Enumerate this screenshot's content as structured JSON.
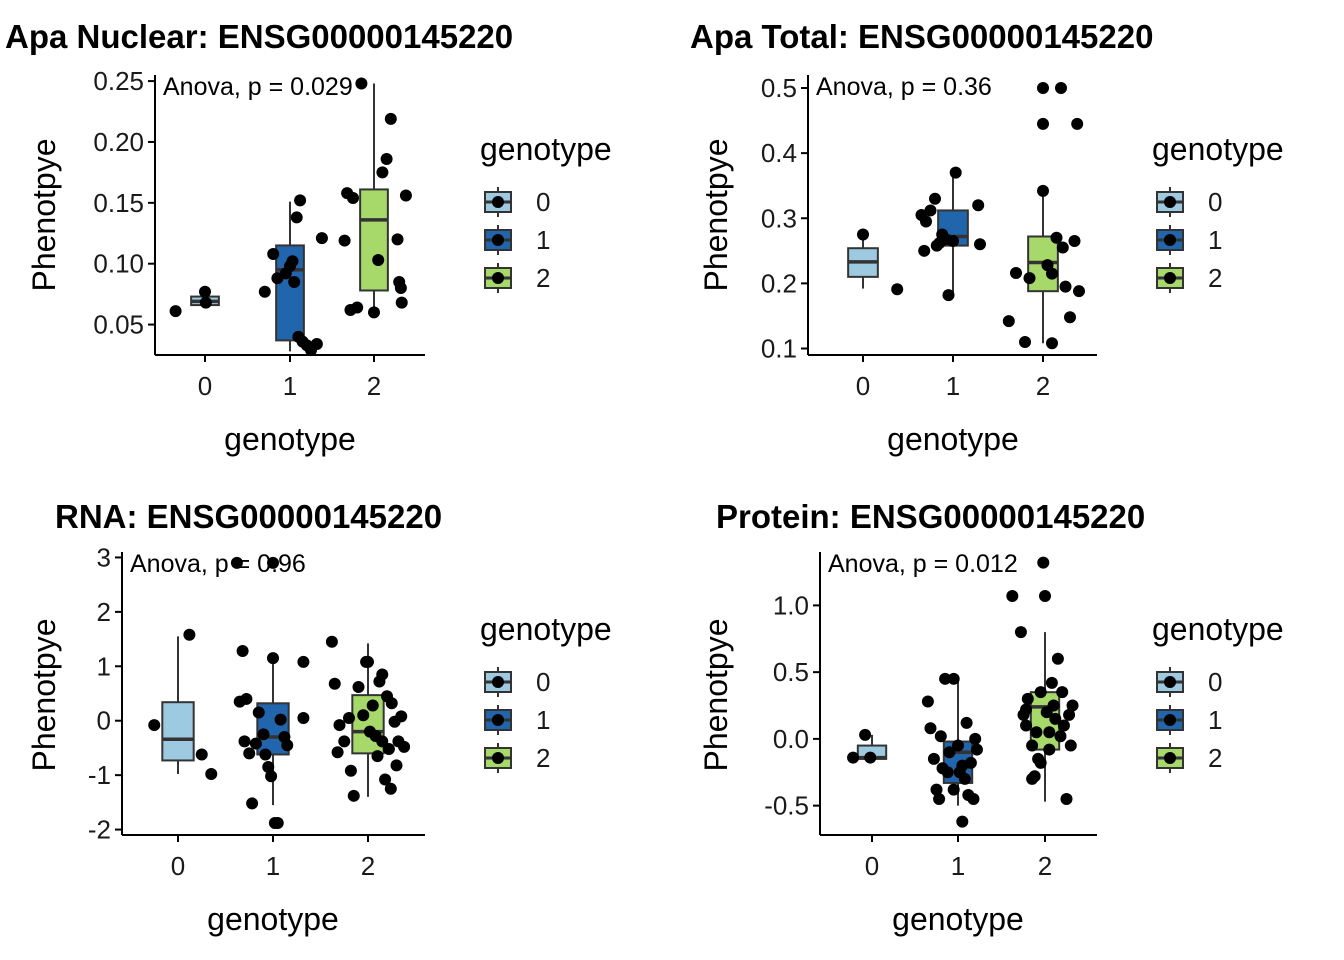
{
  "colors": {
    "0": "#9ecae1",
    "1": "#2166ac",
    "2": "#a6d96a",
    "axis": "#000000",
    "box_line": "#333333",
    "point": "#000000"
  },
  "chart_data": [
    {
      "type": "box",
      "title": "Apa Nuclear: ENSG00000145220",
      "xlabel": "genotype",
      "ylabel": "Phenotpye",
      "categories": [
        "0",
        "1",
        "2"
      ],
      "ylim": [
        0.025,
        0.255
      ],
      "yticks": [
        0.05,
        0.1,
        0.15,
        0.2,
        0.25
      ],
      "ytick_labels": [
        "0.05",
        "0.10",
        "0.15",
        "0.20",
        "0.25"
      ],
      "annotation": "Anova, p = 0.029",
      "legend": {
        "title": "genotype",
        "entries": [
          "0",
          "1",
          "2"
        ],
        "position": "right"
      },
      "boxes": [
        {
          "q1": 0.066,
          "median": 0.069,
          "q3": 0.073,
          "whisker_low": 0.064,
          "whisker_high": 0.075
        },
        {
          "q1": 0.037,
          "median": 0.095,
          "q3": 0.115,
          "whisker_low": 0.028,
          "whisker_high": 0.151
        },
        {
          "q1": 0.078,
          "median": 0.136,
          "q3": 0.161,
          "whisker_low": 0.058,
          "whisker_high": 0.248
        }
      ],
      "points": [
        {
          "g": 0,
          "dx": -0.35,
          "y": 0.061
        },
        {
          "g": 0,
          "dx": 0.0,
          "y": 0.077
        },
        {
          "g": 0,
          "dx": 0.01,
          "y": 0.068
        },
        {
          "g": 1,
          "dx": -0.3,
          "y": 0.077
        },
        {
          "g": 1,
          "dx": -0.2,
          "y": 0.108
        },
        {
          "g": 1,
          "dx": -0.15,
          "y": 0.088
        },
        {
          "g": 1,
          "dx": -0.05,
          "y": 0.092
        },
        {
          "g": 1,
          "dx": 0.0,
          "y": 0.098
        },
        {
          "g": 1,
          "dx": 0.03,
          "y": 0.102
        },
        {
          "g": 1,
          "dx": 0.08,
          "y": 0.138
        },
        {
          "g": 1,
          "dx": 0.12,
          "y": 0.152
        },
        {
          "g": 1,
          "dx": 0.05,
          "y": 0.085
        },
        {
          "g": 1,
          "dx": 0.1,
          "y": 0.04
        },
        {
          "g": 1,
          "dx": 0.15,
          "y": 0.036
        },
        {
          "g": 1,
          "dx": 0.2,
          "y": 0.033
        },
        {
          "g": 1,
          "dx": 0.25,
          "y": 0.029
        },
        {
          "g": 1,
          "dx": 0.32,
          "y": 0.034
        },
        {
          "g": 1,
          "dx": 0.38,
          "y": 0.121
        },
        {
          "g": 2,
          "dx": -0.35,
          "y": 0.119
        },
        {
          "g": 2,
          "dx": -0.32,
          "y": 0.158
        },
        {
          "g": 2,
          "dx": -0.28,
          "y": 0.062
        },
        {
          "g": 2,
          "dx": -0.25,
          "y": 0.154
        },
        {
          "g": 2,
          "dx": -0.2,
          "y": 0.064
        },
        {
          "g": 2,
          "dx": -0.15,
          "y": 0.248
        },
        {
          "g": 2,
          "dx": 0.0,
          "y": 0.06
        },
        {
          "g": 2,
          "dx": 0.05,
          "y": 0.103
        },
        {
          "g": 2,
          "dx": 0.1,
          "y": 0.175
        },
        {
          "g": 2,
          "dx": 0.15,
          "y": 0.186
        },
        {
          "g": 2,
          "dx": 0.2,
          "y": 0.219
        },
        {
          "g": 2,
          "dx": 0.28,
          "y": 0.12
        },
        {
          "g": 2,
          "dx": 0.3,
          "y": 0.085
        },
        {
          "g": 2,
          "dx": 0.32,
          "y": 0.08
        },
        {
          "g": 2,
          "dx": 0.33,
          "y": 0.068
        },
        {
          "g": 2,
          "dx": 0.38,
          "y": 0.156
        }
      ]
    },
    {
      "type": "box",
      "title": "Apa Total: ENSG00000145220",
      "xlabel": "genotype",
      "ylabel": "Phenotpye",
      "categories": [
        "0",
        "1",
        "2"
      ],
      "ylim": [
        0.09,
        0.52
      ],
      "yticks": [
        0.1,
        0.2,
        0.3,
        0.4,
        0.5
      ],
      "ytick_labels": [
        "0.1",
        "0.2",
        "0.3",
        "0.4",
        "0.5"
      ],
      "annotation": "Anova, p = 0.36",
      "legend": {
        "title": "genotype",
        "entries": [
          "0",
          "1",
          "2"
        ],
        "position": "right"
      },
      "boxes": [
        {
          "q1": 0.21,
          "median": 0.233,
          "q3": 0.254,
          "whisker_low": 0.192,
          "whisker_high": 0.275
        },
        {
          "q1": 0.258,
          "median": 0.272,
          "q3": 0.312,
          "whisker_low": 0.183,
          "whisker_high": 0.37
        },
        {
          "q1": 0.188,
          "median": 0.232,
          "q3": 0.272,
          "whisker_low": 0.108,
          "whisker_high": 0.342
        }
      ],
      "points": [
        {
          "g": 0,
          "dx": 0.0,
          "y": 0.275
        },
        {
          "g": 0,
          "dx": 0.38,
          "y": 0.191
        },
        {
          "g": 1,
          "dx": -0.35,
          "y": 0.305
        },
        {
          "g": 1,
          "dx": -0.3,
          "y": 0.295
        },
        {
          "g": 1,
          "dx": -0.32,
          "y": 0.25
        },
        {
          "g": 1,
          "dx": -0.25,
          "y": 0.312
        },
        {
          "g": 1,
          "dx": -0.2,
          "y": 0.33
        },
        {
          "g": 1,
          "dx": -0.18,
          "y": 0.258
        },
        {
          "g": 1,
          "dx": -0.15,
          "y": 0.262
        },
        {
          "g": 1,
          "dx": -0.12,
          "y": 0.275
        },
        {
          "g": 1,
          "dx": -0.08,
          "y": 0.268
        },
        {
          "g": 1,
          "dx": -0.05,
          "y": 0.182
        },
        {
          "g": 1,
          "dx": 0.0,
          "y": 0.265
        },
        {
          "g": 1,
          "dx": 0.03,
          "y": 0.37
        },
        {
          "g": 1,
          "dx": 0.3,
          "y": 0.26
        },
        {
          "g": 1,
          "dx": 0.28,
          "y": 0.32
        },
        {
          "g": 2,
          "dx": -0.38,
          "y": 0.142
        },
        {
          "g": 2,
          "dx": -0.3,
          "y": 0.216
        },
        {
          "g": 2,
          "dx": -0.2,
          "y": 0.11
        },
        {
          "g": 2,
          "dx": -0.15,
          "y": 0.208
        },
        {
          "g": 2,
          "dx": 0.0,
          "y": 0.342
        },
        {
          "g": 2,
          "dx": 0.0,
          "y": 0.445
        },
        {
          "g": 2,
          "dx": 0.0,
          "y": 0.5
        },
        {
          "g": 2,
          "dx": 0.05,
          "y": 0.228
        },
        {
          "g": 2,
          "dx": 0.1,
          "y": 0.108
        },
        {
          "g": 2,
          "dx": 0.15,
          "y": 0.27
        },
        {
          "g": 2,
          "dx": 0.2,
          "y": 0.5
        },
        {
          "g": 2,
          "dx": 0.25,
          "y": 0.195
        },
        {
          "g": 2,
          "dx": 0.3,
          "y": 0.148
        },
        {
          "g": 2,
          "dx": 0.35,
          "y": 0.265
        },
        {
          "g": 2,
          "dx": 0.38,
          "y": 0.445
        },
        {
          "g": 2,
          "dx": 0.4,
          "y": 0.188
        },
        {
          "g": 2,
          "dx": 0.1,
          "y": 0.215
        },
        {
          "g": 2,
          "dx": 0.22,
          "y": 0.255
        }
      ]
    },
    {
      "type": "box",
      "title": "RNA: ENSG00000145220",
      "xlabel": "genotype",
      "ylabel": "Phenotpye",
      "categories": [
        "0",
        "1",
        "2"
      ],
      "ylim": [
        -2.1,
        3.1
      ],
      "yticks": [
        -2,
        -1,
        0,
        1,
        2,
        3
      ],
      "ytick_labels": [
        "-2",
        "-1",
        "0",
        "1",
        "2",
        "3"
      ],
      "annotation": "Anova, p = 0.96",
      "legend": {
        "title": "genotype",
        "entries": [
          "0",
          "1",
          "2"
        ],
        "position": "right"
      },
      "boxes": [
        {
          "q1": -0.73,
          "median": -0.34,
          "q3": 0.34,
          "whisker_low": -0.98,
          "whisker_high": 1.55
        },
        {
          "q1": -0.62,
          "median": -0.3,
          "q3": 0.32,
          "whisker_low": -1.55,
          "whisker_high": 1.25
        },
        {
          "q1": -0.6,
          "median": -0.2,
          "q3": 0.47,
          "whisker_low": -1.4,
          "whisker_high": 1.42
        }
      ],
      "points": [
        {
          "g": 0,
          "dx": -0.25,
          "y": -0.08
        },
        {
          "g": 0,
          "dx": 0.12,
          "y": 1.58
        },
        {
          "g": 0,
          "dx": 0.25,
          "y": -0.62
        },
        {
          "g": 0,
          "dx": 0.35,
          "y": -0.98
        },
        {
          "g": 1,
          "dx": -0.32,
          "y": 1.28
        },
        {
          "g": 1,
          "dx": -0.35,
          "y": 0.35
        },
        {
          "g": 1,
          "dx": -0.28,
          "y": 0.4
        },
        {
          "g": 1,
          "dx": -0.3,
          "y": -0.38
        },
        {
          "g": 1,
          "dx": -0.22,
          "y": -1.52
        },
        {
          "g": 1,
          "dx": -0.18,
          "y": -0.42
        },
        {
          "g": 1,
          "dx": -0.15,
          "y": 0.15
        },
        {
          "g": 1,
          "dx": -0.1,
          "y": -0.25
        },
        {
          "g": 1,
          "dx": -0.05,
          "y": -0.85
        },
        {
          "g": 1,
          "dx": -0.08,
          "y": -0.62
        },
        {
          "g": 1,
          "dx": -0.02,
          "y": -1.02
        },
        {
          "g": 1,
          "dx": 0.0,
          "y": 1.15
        },
        {
          "g": 1,
          "dx": 0.02,
          "y": -1.88
        },
        {
          "g": 1,
          "dx": 0.05,
          "y": -1.88
        },
        {
          "g": 1,
          "dx": 0.08,
          "y": 0.02
        },
        {
          "g": 1,
          "dx": 0.12,
          "y": -0.3
        },
        {
          "g": 1,
          "dx": 0.15,
          "y": -0.45
        },
        {
          "g": 1,
          "dx": -0.25,
          "y": -0.6
        },
        {
          "g": 1,
          "dx": 0.32,
          "y": 1.08
        },
        {
          "g": 1,
          "dx": 0.32,
          "y": 0.05
        },
        {
          "g": 1,
          "dx": -0.38,
          "y": 2.9
        },
        {
          "g": 1,
          "dx": 0.0,
          "y": 2.9
        },
        {
          "g": 2,
          "dx": -0.38,
          "y": 1.45
        },
        {
          "g": 2,
          "dx": -0.35,
          "y": 0.68
        },
        {
          "g": 2,
          "dx": -0.3,
          "y": -0.08
        },
        {
          "g": 2,
          "dx": -0.32,
          "y": -0.58
        },
        {
          "g": 2,
          "dx": -0.25,
          "y": -0.38
        },
        {
          "g": 2,
          "dx": -0.2,
          "y": 0.05
        },
        {
          "g": 2,
          "dx": -0.18,
          "y": -0.92
        },
        {
          "g": 2,
          "dx": -0.15,
          "y": -1.38
        },
        {
          "g": 2,
          "dx": -0.1,
          "y": 0.62
        },
        {
          "g": 2,
          "dx": -0.05,
          "y": 0.1
        },
        {
          "g": 2,
          "dx": 0.0,
          "y": 1.08
        },
        {
          "g": 2,
          "dx": 0.02,
          "y": -0.2
        },
        {
          "g": 2,
          "dx": 0.05,
          "y": 0.28
        },
        {
          "g": 2,
          "dx": 0.08,
          "y": -0.28
        },
        {
          "g": 2,
          "dx": 0.1,
          "y": -0.65
        },
        {
          "g": 2,
          "dx": 0.12,
          "y": 0.72
        },
        {
          "g": 2,
          "dx": 0.15,
          "y": 0.85
        },
        {
          "g": 2,
          "dx": 0.18,
          "y": -1.08
        },
        {
          "g": 2,
          "dx": 0.2,
          "y": 0.45
        },
        {
          "g": 2,
          "dx": 0.22,
          "y": -0.52
        },
        {
          "g": 2,
          "dx": 0.25,
          "y": 0.32
        },
        {
          "g": 2,
          "dx": 0.28,
          "y": -0.02
        },
        {
          "g": 2,
          "dx": 0.3,
          "y": -0.82
        },
        {
          "g": 2,
          "dx": 0.32,
          "y": -0.38
        },
        {
          "g": 2,
          "dx": 0.35,
          "y": 0.08
        },
        {
          "g": 2,
          "dx": 0.38,
          "y": -0.48
        },
        {
          "g": 2,
          "dx": -0.02,
          "y": 1.08
        },
        {
          "g": 2,
          "dx": 0.24,
          "y": -1.25
        },
        {
          "g": 2,
          "dx": 0.15,
          "y": -0.38
        }
      ]
    },
    {
      "type": "box",
      "title": "Protein: ENSG00000145220",
      "xlabel": "genotype",
      "ylabel": "Phenotpye",
      "categories": [
        "0",
        "1",
        "2"
      ],
      "ylim": [
        -0.72,
        1.4
      ],
      "yticks": [
        -0.5,
        0.0,
        0.5,
        1.0
      ],
      "ytick_labels": [
        "-0.5",
        "0.0",
        "0.5",
        "1.0"
      ],
      "annotation": "Anova, p = 0.012",
      "legend": {
        "title": "genotype",
        "entries": [
          "0",
          "1",
          "2"
        ],
        "position": "right"
      },
      "boxes": [
        {
          "q1": -0.15,
          "median": -0.14,
          "q3": -0.05,
          "whisker_low": -0.16,
          "whisker_high": 0.03
        },
        {
          "q1": -0.33,
          "median": -0.1,
          "q3": -0.02,
          "whisker_low": -0.5,
          "whisker_high": 0.45
        },
        {
          "q1": -0.08,
          "median": 0.24,
          "q3": 0.35,
          "whisker_low": -0.47,
          "whisker_high": 0.8
        }
      ],
      "points": [
        {
          "g": 0,
          "dx": -0.22,
          "y": -0.14
        },
        {
          "g": 0,
          "dx": -0.08,
          "y": 0.03
        },
        {
          "g": 0,
          "dx": -0.02,
          "y": -0.14
        },
        {
          "g": 1,
          "dx": -0.35,
          "y": 0.28
        },
        {
          "g": 1,
          "dx": -0.32,
          "y": 0.08
        },
        {
          "g": 1,
          "dx": -0.28,
          "y": -0.15
        },
        {
          "g": 1,
          "dx": -0.25,
          "y": -0.38
        },
        {
          "g": 1,
          "dx": -0.22,
          "y": -0.45
        },
        {
          "g": 1,
          "dx": -0.2,
          "y": 0.02
        },
        {
          "g": 1,
          "dx": -0.18,
          "y": -0.22
        },
        {
          "g": 1,
          "dx": -0.15,
          "y": 0.45
        },
        {
          "g": 1,
          "dx": -0.1,
          "y": -0.1
        },
        {
          "g": 1,
          "dx": -0.05,
          "y": 0.45
        },
        {
          "g": 1,
          "dx": 0.0,
          "y": -0.05
        },
        {
          "g": 1,
          "dx": 0.02,
          "y": -0.25
        },
        {
          "g": 1,
          "dx": 0.05,
          "y": -0.62
        },
        {
          "g": 1,
          "dx": 0.08,
          "y": -0.3
        },
        {
          "g": 1,
          "dx": 0.1,
          "y": 0.12
        },
        {
          "g": 1,
          "dx": 0.12,
          "y": -0.42
        },
        {
          "g": 1,
          "dx": 0.15,
          "y": -0.18
        },
        {
          "g": 1,
          "dx": 0.18,
          "y": -0.45
        },
        {
          "g": 1,
          "dx": 0.2,
          "y": 0.0
        },
        {
          "g": 1,
          "dx": 0.22,
          "y": -0.08
        },
        {
          "g": 1,
          "dx": -0.05,
          "y": -0.38
        },
        {
          "g": 1,
          "dx": 0.05,
          "y": -0.2
        },
        {
          "g": 1,
          "dx": -0.12,
          "y": -0.25
        },
        {
          "g": 2,
          "dx": -0.38,
          "y": 1.07
        },
        {
          "g": 2,
          "dx": -0.28,
          "y": 0.8
        },
        {
          "g": 2,
          "dx": -0.25,
          "y": 0.18
        },
        {
          "g": 2,
          "dx": -0.22,
          "y": 0.1
        },
        {
          "g": 2,
          "dx": -0.2,
          "y": 0.3
        },
        {
          "g": 2,
          "dx": -0.15,
          "y": -0.05
        },
        {
          "g": 2,
          "dx": -0.12,
          "y": -0.28
        },
        {
          "g": 2,
          "dx": -0.1,
          "y": 0.05
        },
        {
          "g": 2,
          "dx": -0.08,
          "y": -0.15
        },
        {
          "g": 2,
          "dx": -0.05,
          "y": 0.35
        },
        {
          "g": 2,
          "dx": -0.02,
          "y": 1.32
        },
        {
          "g": 2,
          "dx": 0.0,
          "y": 1.07
        },
        {
          "g": 2,
          "dx": 0.02,
          "y": 0.2
        },
        {
          "g": 2,
          "dx": 0.05,
          "y": -0.08
        },
        {
          "g": 2,
          "dx": 0.08,
          "y": 0.42
        },
        {
          "g": 2,
          "dx": 0.1,
          "y": 0.25
        },
        {
          "g": 2,
          "dx": 0.12,
          "y": 0.15
        },
        {
          "g": 2,
          "dx": 0.15,
          "y": 0.6
        },
        {
          "g": 2,
          "dx": 0.18,
          "y": 0.02
        },
        {
          "g": 2,
          "dx": 0.2,
          "y": 0.35
        },
        {
          "g": 2,
          "dx": 0.22,
          "y": 0.1
        },
        {
          "g": 2,
          "dx": 0.25,
          "y": -0.45
        },
        {
          "g": 2,
          "dx": 0.28,
          "y": 0.18
        },
        {
          "g": 2,
          "dx": 0.3,
          "y": -0.05
        },
        {
          "g": 2,
          "dx": 0.32,
          "y": 0.25
        },
        {
          "g": 2,
          "dx": -0.15,
          "y": -0.3
        },
        {
          "g": 2,
          "dx": -0.05,
          "y": -0.18
        },
        {
          "g": 2,
          "dx": 0.05,
          "y": 0.05
        },
        {
          "g": 2,
          "dx": -0.22,
          "y": 0.22
        }
      ]
    }
  ]
}
